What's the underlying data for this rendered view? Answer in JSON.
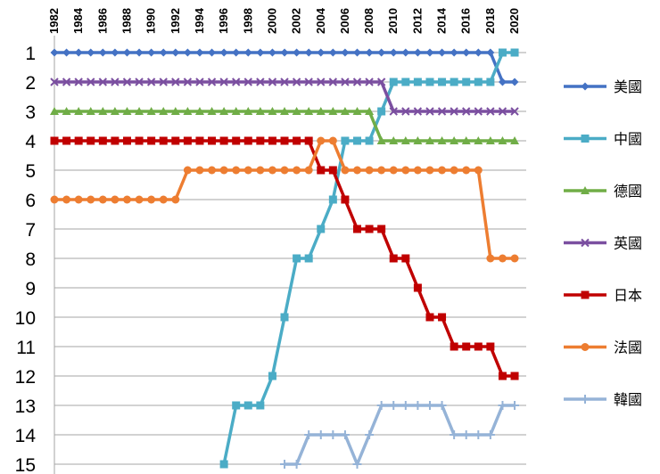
{
  "chart_data": {
    "type": "line",
    "title": "",
    "xlabel": "",
    "ylabel": "",
    "x_axis_position": "top",
    "y_axis_reversed": true,
    "ylim": [
      1,
      15
    ],
    "grid": "horizontal",
    "legend_position": "right",
    "x_tick_labels": [
      "1982",
      "1984",
      "1986",
      "1988",
      "1990",
      "1992",
      "1994",
      "1996",
      "1998",
      "2000",
      "2002",
      "2004",
      "2006",
      "2008",
      "2010",
      "2012",
      "2014",
      "2016",
      "2018",
      "2020"
    ],
    "y_tick_labels": [
      "1",
      "2",
      "3",
      "4",
      "5",
      "6",
      "7",
      "8",
      "9",
      "10",
      "11",
      "12",
      "13",
      "14",
      "15"
    ],
    "series": [
      {
        "name": "美國",
        "color": "#4472C4",
        "marker": "diamond",
        "x": [
          1982,
          1983,
          1984,
          1985,
          1986,
          1987,
          1988,
          1989,
          1990,
          1991,
          1992,
          1993,
          1994,
          1995,
          1996,
          1997,
          1998,
          1999,
          2000,
          2001,
          2002,
          2003,
          2004,
          2005,
          2006,
          2007,
          2008,
          2009,
          2010,
          2011,
          2012,
          2013,
          2014,
          2015,
          2016,
          2017,
          2018,
          2019,
          2020
        ],
        "values": [
          1,
          1,
          1,
          1,
          1,
          1,
          1,
          1,
          1,
          1,
          1,
          1,
          1,
          1,
          1,
          1,
          1,
          1,
          1,
          1,
          1,
          1,
          1,
          1,
          1,
          1,
          1,
          1,
          1,
          1,
          1,
          1,
          1,
          1,
          1,
          1,
          1,
          2,
          2
        ]
      },
      {
        "name": "中國",
        "color": "#4BACC6",
        "marker": "square",
        "x": [
          1996,
          1997,
          1998,
          1999,
          2000,
          2001,
          2002,
          2003,
          2004,
          2005,
          2006,
          2007,
          2008,
          2009,
          2010,
          2011,
          2012,
          2013,
          2014,
          2015,
          2016,
          2017,
          2018,
          2019,
          2020
        ],
        "values": [
          15,
          13,
          13,
          13,
          12,
          10,
          8,
          8,
          7,
          6,
          4,
          4,
          4,
          3,
          2,
          2,
          2,
          2,
          2,
          2,
          2,
          2,
          2,
          1,
          1
        ]
      },
      {
        "name": "德國",
        "color": "#70AD47",
        "marker": "triangle",
        "x": [
          1982,
          1983,
          1984,
          1985,
          1986,
          1987,
          1988,
          1989,
          1990,
          1991,
          1992,
          1993,
          1994,
          1995,
          1996,
          1997,
          1998,
          1999,
          2000,
          2001,
          2002,
          2003,
          2004,
          2005,
          2006,
          2007,
          2008,
          2009,
          2010,
          2011,
          2012,
          2013,
          2014,
          2015,
          2016,
          2017,
          2018,
          2019,
          2020
        ],
        "values": [
          3,
          3,
          3,
          3,
          3,
          3,
          3,
          3,
          3,
          3,
          3,
          3,
          3,
          3,
          3,
          3,
          3,
          3,
          3,
          3,
          3,
          3,
          3,
          3,
          3,
          3,
          3,
          4,
          4,
          4,
          4,
          4,
          4,
          4,
          4,
          4,
          4,
          4,
          4
        ]
      },
      {
        "name": "英國",
        "color": "#7B4FA0",
        "marker": "cross",
        "x": [
          1982,
          1983,
          1984,
          1985,
          1986,
          1987,
          1988,
          1989,
          1990,
          1991,
          1992,
          1993,
          1994,
          1995,
          1996,
          1997,
          1998,
          1999,
          2000,
          2001,
          2002,
          2003,
          2004,
          2005,
          2006,
          2007,
          2008,
          2009,
          2010,
          2011,
          2012,
          2013,
          2014,
          2015,
          2016,
          2017,
          2018,
          2019,
          2020
        ],
        "values": [
          2,
          2,
          2,
          2,
          2,
          2,
          2,
          2,
          2,
          2,
          2,
          2,
          2,
          2,
          2,
          2,
          2,
          2,
          2,
          2,
          2,
          2,
          2,
          2,
          2,
          2,
          2,
          2,
          3,
          3,
          3,
          3,
          3,
          3,
          3,
          3,
          3,
          3,
          3
        ]
      },
      {
        "name": "日本",
        "color": "#C00000",
        "marker": "square",
        "x": [
          1982,
          1983,
          1984,
          1985,
          1986,
          1987,
          1988,
          1989,
          1990,
          1991,
          1992,
          1993,
          1994,
          1995,
          1996,
          1997,
          1998,
          1999,
          2000,
          2001,
          2002,
          2003,
          2004,
          2005,
          2006,
          2007,
          2008,
          2009,
          2010,
          2011,
          2012,
          2013,
          2014,
          2015,
          2016,
          2017,
          2018,
          2019,
          2020
        ],
        "values": [
          4,
          4,
          4,
          4,
          4,
          4,
          4,
          4,
          4,
          4,
          4,
          4,
          4,
          4,
          4,
          4,
          4,
          4,
          4,
          4,
          4,
          4,
          5,
          5,
          6,
          7,
          7,
          7,
          8,
          8,
          9,
          10,
          10,
          11,
          11,
          11,
          11,
          12,
          12
        ]
      },
      {
        "name": "法國",
        "color": "#ED7D31",
        "marker": "circle",
        "x": [
          1982,
          1983,
          1984,
          1985,
          1986,
          1987,
          1988,
          1989,
          1990,
          1991,
          1992,
          1993,
          1994,
          1995,
          1996,
          1997,
          1998,
          1999,
          2000,
          2001,
          2002,
          2003,
          2004,
          2005,
          2006,
          2007,
          2008,
          2009,
          2010,
          2011,
          2012,
          2013,
          2014,
          2015,
          2016,
          2017,
          2018,
          2019,
          2020
        ],
        "values": [
          6,
          6,
          6,
          6,
          6,
          6,
          6,
          6,
          6,
          6,
          6,
          5,
          5,
          5,
          5,
          5,
          5,
          5,
          5,
          5,
          5,
          5,
          4,
          4,
          5,
          5,
          5,
          5,
          5,
          5,
          5,
          5,
          5,
          5,
          5,
          5,
          8,
          8,
          8
        ]
      },
      {
        "name": "韓國",
        "color": "#95B3D7",
        "marker": "plus",
        "x": [
          2001,
          2002,
          2003,
          2004,
          2005,
          2006,
          2007,
          2008,
          2009,
          2010,
          2011,
          2012,
          2013,
          2014,
          2015,
          2016,
          2017,
          2018,
          2019,
          2020
        ],
        "values": [
          15,
          15,
          14,
          14,
          14,
          14,
          15,
          14,
          13,
          13,
          13,
          13,
          13,
          13,
          14,
          14,
          14,
          14,
          13,
          13
        ]
      }
    ]
  }
}
